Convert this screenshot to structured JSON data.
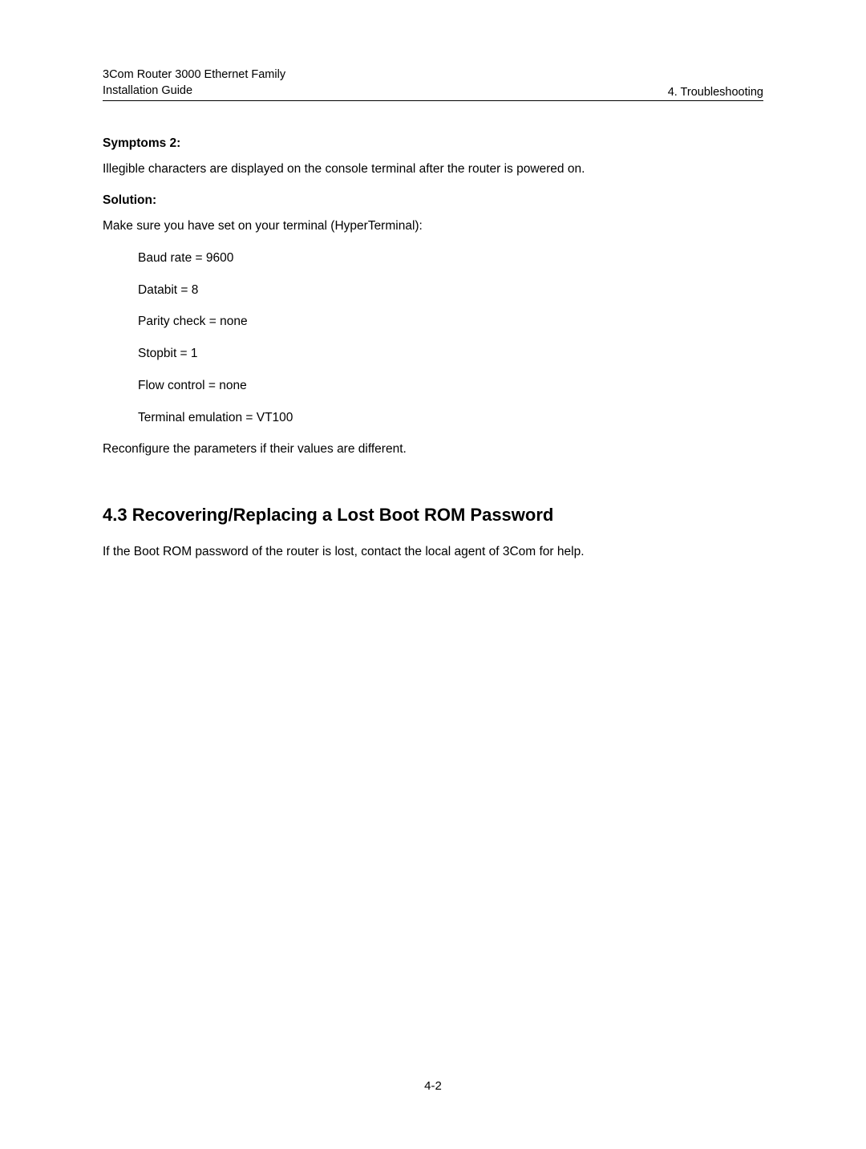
{
  "header": {
    "line1": "3Com Router 3000 Ethernet Family",
    "line2": "Installation Guide",
    "right": "4. Troubleshooting"
  },
  "symptoms": {
    "label": "Symptoms 2:",
    "text": "Illegible characters are displayed on the console terminal after the router is powered on."
  },
  "solution": {
    "label": "Solution:",
    "intro": "Make sure you have set on your terminal (HyperTerminal):",
    "params": [
      "Baud rate = 9600",
      "Databit = 8",
      "Parity check = none",
      "Stopbit = 1",
      "Flow control = none",
      "Terminal emulation = VT100"
    ],
    "closing": "Reconfigure the parameters if their values are different."
  },
  "section43": {
    "heading": "4.3  Recovering/Replacing a Lost Boot ROM Password",
    "body": "If the Boot ROM password of the router is lost, contact the local agent of 3Com for help."
  },
  "footer": {
    "page": "4-2"
  }
}
